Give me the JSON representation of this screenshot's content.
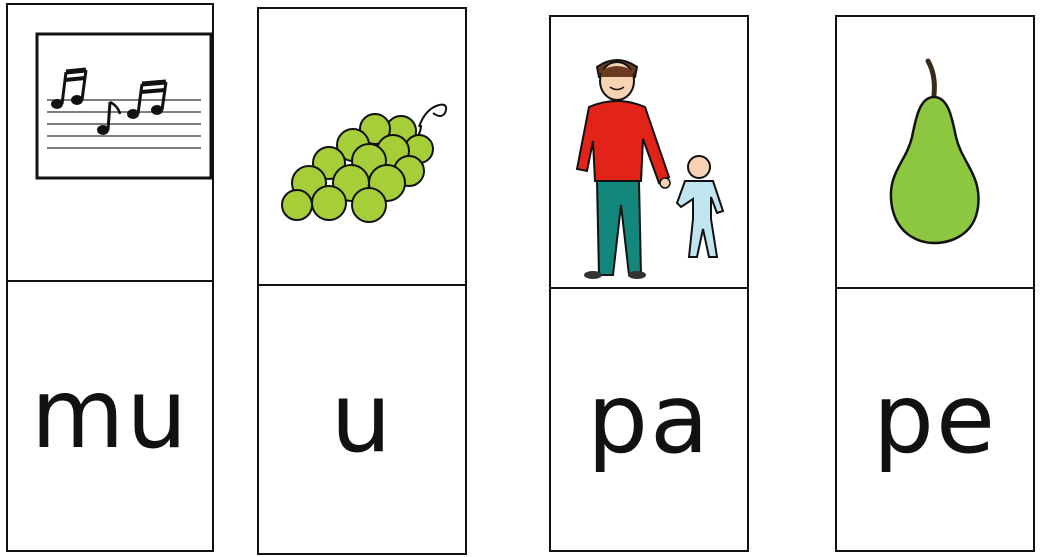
{
  "cards": [
    {
      "picture": "music-notes-icon",
      "syllable": "mu"
    },
    {
      "picture": "grapes-icon",
      "syllable": "u"
    },
    {
      "picture": "father-and-child-icon",
      "syllable": "pa"
    },
    {
      "picture": "pear-icon",
      "syllable": "pe"
    }
  ],
  "colors": {
    "border": "#111111",
    "grape_green": "#a6ce39",
    "pear_green": "#8dc63f",
    "jacket_red": "#e2231a",
    "pants_teal": "#13877b",
    "child_blue": "#bfe6f0"
  }
}
